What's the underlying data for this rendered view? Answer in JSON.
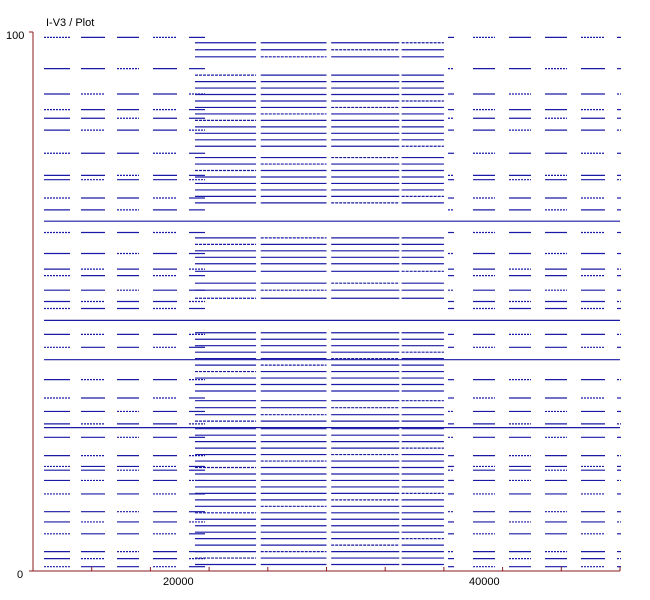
{
  "window": {
    "title": "I-V3 / Plot"
  },
  "chart_data": {
    "type": "scatter",
    "title": "I-V3 / Plot",
    "xlabel": "",
    "ylabel": "",
    "xlim": [
      0,
      50000
    ],
    "ylim": [
      0,
      100
    ],
    "x_tick_labels": [
      "20000",
      "40000"
    ],
    "x_ticks": [
      0,
      5000,
      10000,
      15000,
      20000,
      25000,
      30000,
      35000,
      40000,
      45000,
      50000
    ],
    "y_tick_labels": [
      "0",
      "100"
    ],
    "y_ticks": [
      0,
      100
    ],
    "grid": false,
    "legend": "none",
    "series": [
      {
        "color": "#1a1aa6"
      }
    ],
    "horizontal_rows": [
      {
        "y": 99.0,
        "full": false
      },
      {
        "y": 93.2,
        "full": false
      },
      {
        "y": 88.5,
        "full": false
      },
      {
        "y": 85.6,
        "full": false
      },
      {
        "y": 84.0,
        "full": false
      },
      {
        "y": 81.8,
        "full": false
      },
      {
        "y": 77.5,
        "full": false
      },
      {
        "y": 73.4,
        "full": false
      },
      {
        "y": 72.6,
        "full": false
      },
      {
        "y": 69.2,
        "full": false
      },
      {
        "y": 67.0,
        "full": false
      },
      {
        "y": 64.9,
        "full": true
      },
      {
        "y": 62.8,
        "full": false
      },
      {
        "y": 58.9,
        "full": false
      },
      {
        "y": 56.0,
        "full": false
      },
      {
        "y": 54.8,
        "full": false
      },
      {
        "y": 52.1,
        "full": false
      },
      {
        "y": 50.0,
        "full": false
      },
      {
        "y": 48.7,
        "full": false
      },
      {
        "y": 46.5,
        "full": true
      },
      {
        "y": 43.9,
        "full": false
      },
      {
        "y": 41.5,
        "full": false
      },
      {
        "y": 39.2,
        "full": true
      },
      {
        "y": 35.5,
        "full": false
      },
      {
        "y": 32.1,
        "full": false
      },
      {
        "y": 29.6,
        "full": false
      },
      {
        "y": 27.3,
        "full": false
      },
      {
        "y": 26.6,
        "full": true
      },
      {
        "y": 24.8,
        "full": false
      },
      {
        "y": 21.4,
        "full": false
      },
      {
        "y": 19.4,
        "full": false
      },
      {
        "y": 18.7,
        "full": false
      },
      {
        "y": 16.8,
        "full": false
      },
      {
        "y": 14.3,
        "full": false
      },
      {
        "y": 11.0,
        "full": false
      },
      {
        "y": 9.1,
        "full": false
      },
      {
        "y": 6.9,
        "full": false
      },
      {
        "y": 3.6,
        "full": false
      },
      {
        "y": 2.3,
        "full": false
      },
      {
        "y": 0.8,
        "full": false
      }
    ],
    "dense_band_x": [
      [
        13800,
        19000
      ],
      [
        19400,
        25000
      ],
      [
        25400,
        31200
      ],
      [
        31400,
        35000
      ]
    ],
    "dense_band_rows": [
      98.0,
      96.7,
      95.4,
      92.0,
      90.8,
      89.6,
      88.4,
      87.2,
      86.0,
      84.8,
      83.6,
      82.4,
      81.2,
      80.0,
      78.8,
      76.7,
      75.5,
      74.3,
      73.1,
      71.9,
      70.7,
      69.5,
      68.3,
      61.8,
      60.6,
      59.4,
      58.2,
      57.0,
      55.6,
      53.4,
      52.1,
      50.6,
      44.2,
      43.0,
      41.8,
      40.6,
      39.4,
      38.2,
      37.0,
      35.8,
      34.6,
      33.4,
      31.6,
      30.3,
      29.0,
      27.8,
      26.4,
      25.2,
      24.0,
      22.8,
      21.6,
      20.4,
      19.2,
      18.0,
      16.8,
      15.6,
      14.4,
      13.2,
      12.0,
      10.8,
      9.6,
      8.4,
      7.2,
      6.0,
      4.8,
      3.6,
      2.4,
      1.2
    ]
  }
}
